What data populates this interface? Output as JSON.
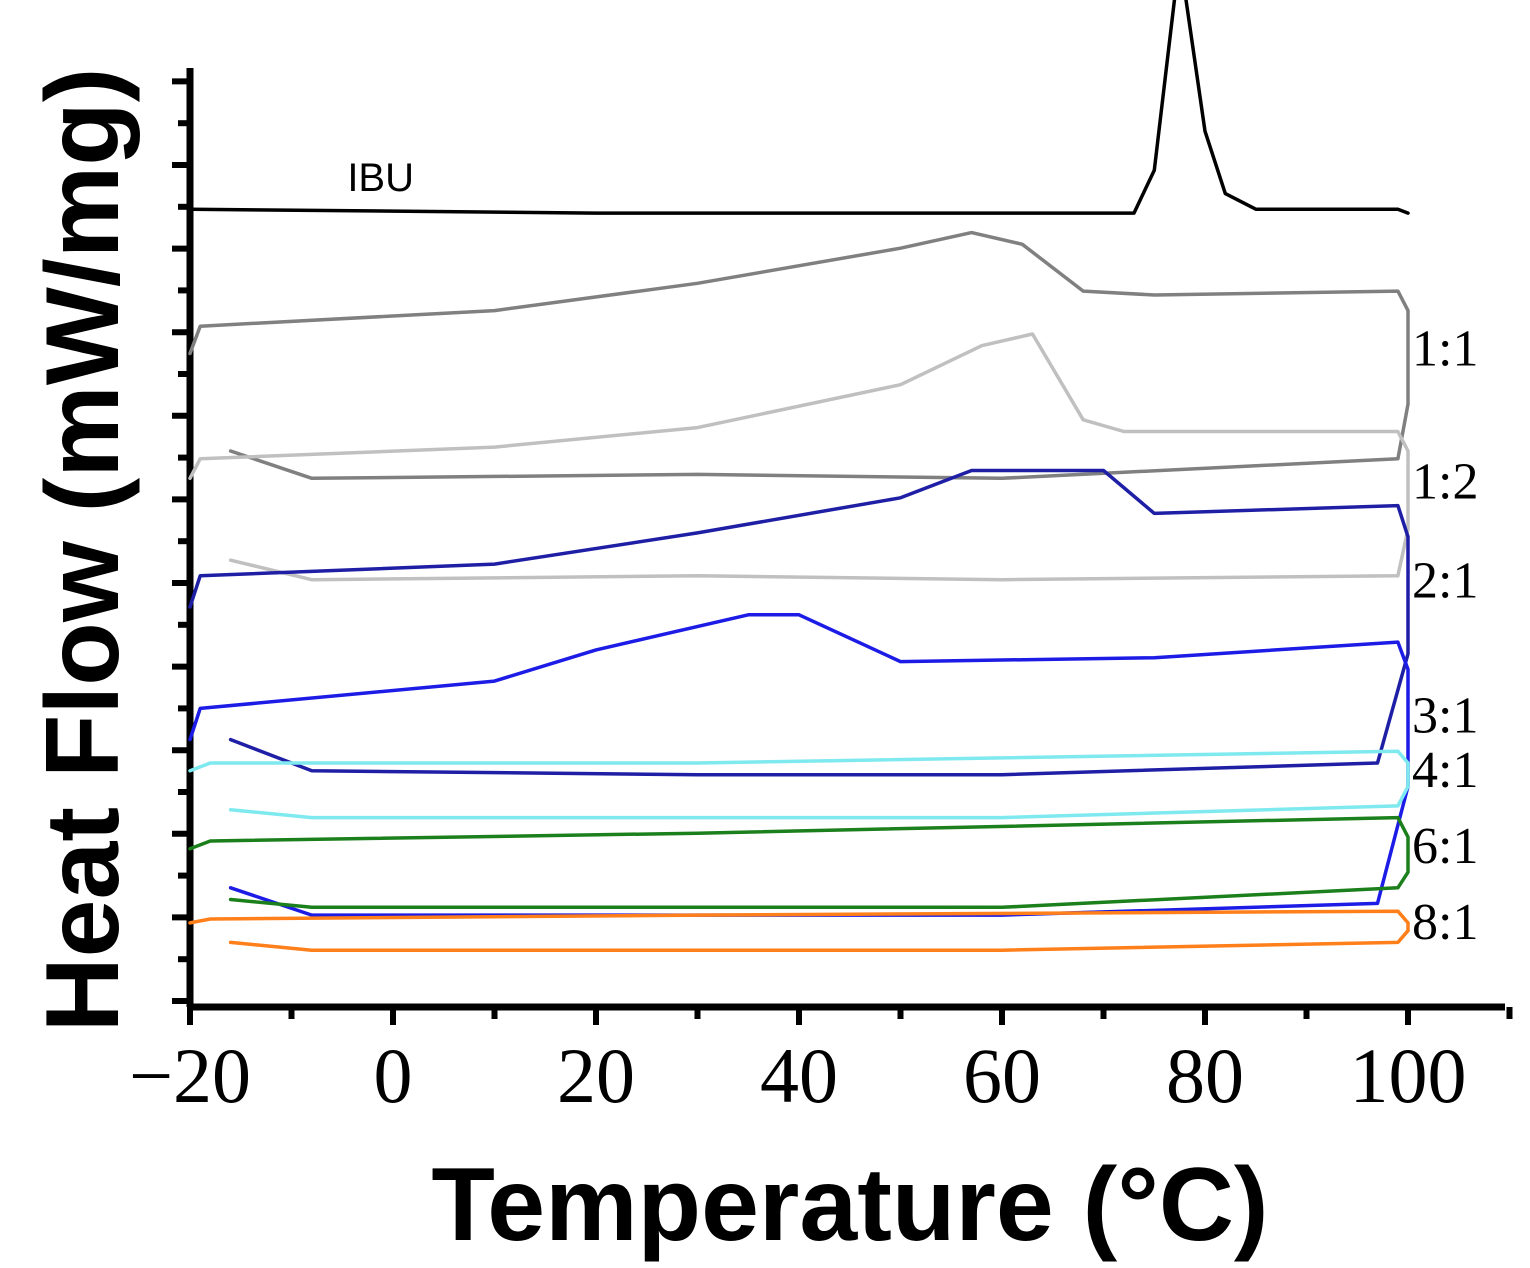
{
  "chart_data": {
    "type": "line",
    "title": "",
    "xlabel": "Temperature (°C)",
    "ylabel": "Heat Flow (mW/mg)",
    "xlim": [
      -20,
      110
    ],
    "xticks": [
      "−20",
      "0",
      "20",
      "40",
      "60",
      "80",
      "100"
    ],
    "xtick_values": [
      -20,
      0,
      20,
      40,
      60,
      80,
      100
    ],
    "grid": false,
    "legend": "inline labels at right of each curve",
    "series": [
      {
        "name": "IBU",
        "label": "IBU",
        "color": "#000000",
        "offset": 9.6,
        "heating": [
          [
            -20,
            0.0
          ],
          [
            20,
            -0.05
          ],
          [
            60,
            -0.05
          ],
          [
            73,
            -0.05
          ],
          [
            75,
            0.5
          ],
          [
            77,
            2.7
          ],
          [
            78,
            2.8
          ],
          [
            80,
            1.0
          ],
          [
            82,
            0.2
          ],
          [
            85,
            0.0
          ],
          [
            99,
            0.0
          ],
          [
            100,
            -0.05
          ]
        ],
        "cooling": []
      },
      {
        "name": "1:1",
        "label": "1:1",
        "color": "#808080",
        "offset": 8.1,
        "heating": [
          [
            -20,
            -0.35
          ],
          [
            -19,
            0.0
          ],
          [
            10,
            0.2
          ],
          [
            30,
            0.55
          ],
          [
            50,
            1.0
          ],
          [
            57,
            1.2
          ],
          [
            62,
            1.05
          ],
          [
            68,
            0.45
          ],
          [
            75,
            0.4
          ],
          [
            99,
            0.45
          ],
          [
            100,
            0.2
          ]
        ],
        "cooling": [
          [
            -16,
            -1.6
          ],
          [
            -8,
            -1.95
          ],
          [
            30,
            -1.9
          ],
          [
            60,
            -1.95
          ],
          [
            99,
            -1.7
          ],
          [
            100,
            -1.0
          ]
        ]
      },
      {
        "name": "1:2",
        "label": "1:2",
        "color": "#c0c0c0",
        "offset": 6.4,
        "heating": [
          [
            -20,
            -0.25
          ],
          [
            -19,
            0.0
          ],
          [
            10,
            0.15
          ],
          [
            30,
            0.4
          ],
          [
            50,
            0.95
          ],
          [
            58,
            1.45
          ],
          [
            63,
            1.6
          ],
          [
            68,
            0.5
          ],
          [
            72,
            0.35
          ],
          [
            99,
            0.35
          ],
          [
            100,
            0.1
          ]
        ],
        "cooling": [
          [
            -16,
            -1.3
          ],
          [
            -8,
            -1.55
          ],
          [
            30,
            -1.5
          ],
          [
            60,
            -1.55
          ],
          [
            99,
            -1.5
          ],
          [
            100,
            -0.9
          ]
        ]
      },
      {
        "name": "2:1",
        "label": "2:1",
        "color": "#1f1fa6",
        "offset": 4.9,
        "heating": [
          [
            -20,
            -0.4
          ],
          [
            -19,
            0.0
          ],
          [
            10,
            0.15
          ],
          [
            30,
            0.55
          ],
          [
            50,
            1.0
          ],
          [
            57,
            1.35
          ],
          [
            70,
            1.35
          ],
          [
            75,
            0.8
          ],
          [
            99,
            0.9
          ],
          [
            100,
            0.5
          ]
        ],
        "cooling": [
          [
            -16,
            -2.1
          ],
          [
            -8,
            -2.5
          ],
          [
            30,
            -2.55
          ],
          [
            60,
            -2.55
          ],
          [
            97,
            -2.4
          ],
          [
            100,
            -1.0
          ]
        ]
      },
      {
        "name": "3:1",
        "label": "3:1",
        "color": "#1c1ce6",
        "offset": 3.2,
        "heating": [
          [
            -20,
            -0.4
          ],
          [
            -19,
            0.0
          ],
          [
            10,
            0.35
          ],
          [
            20,
            0.75
          ],
          [
            35,
            1.2
          ],
          [
            40,
            1.2
          ],
          [
            50,
            0.6
          ],
          [
            75,
            0.65
          ],
          [
            99,
            0.85
          ],
          [
            100,
            0.5
          ]
        ],
        "cooling": [
          [
            -16,
            -2.3
          ],
          [
            -8,
            -2.65
          ],
          [
            30,
            -2.65
          ],
          [
            60,
            -2.65
          ],
          [
            97,
            -2.5
          ],
          [
            100,
            -1.0
          ]
        ]
      },
      {
        "name": "4:1",
        "label": "4:1",
        "color": "#7fe9f0",
        "offset": 2.5,
        "heating": [
          [
            -20,
            -0.1
          ],
          [
            -18,
            0.0
          ],
          [
            30,
            0.0
          ],
          [
            99,
            0.15
          ],
          [
            100,
            0.0
          ]
        ],
        "cooling": [
          [
            -16,
            -0.6
          ],
          [
            -8,
            -0.7
          ],
          [
            60,
            -0.7
          ],
          [
            99,
            -0.55
          ],
          [
            100,
            -0.3
          ]
        ]
      },
      {
        "name": "6:1",
        "label": "6:1",
        "color": "#1b7f1b",
        "offset": 1.5,
        "heating": [
          [
            -20,
            -0.1
          ],
          [
            -18,
            0.0
          ],
          [
            30,
            0.1
          ],
          [
            99,
            0.3
          ],
          [
            100,
            0.05
          ]
        ],
        "cooling": [
          [
            -16,
            -0.75
          ],
          [
            -8,
            -0.85
          ],
          [
            60,
            -0.85
          ],
          [
            99,
            -0.6
          ],
          [
            100,
            -0.4
          ]
        ]
      },
      {
        "name": "8:1",
        "label": "8:1",
        "color": "#ff7f1a",
        "offset": 0.5,
        "heating": [
          [
            -20,
            -0.05
          ],
          [
            -18,
            0.0
          ],
          [
            30,
            0.05
          ],
          [
            99,
            0.1
          ],
          [
            100,
            -0.05
          ]
        ],
        "cooling": [
          [
            -16,
            -0.3
          ],
          [
            -8,
            -0.4
          ],
          [
            60,
            -0.4
          ],
          [
            99,
            -0.3
          ],
          [
            100,
            -0.15
          ]
        ]
      }
    ]
  }
}
